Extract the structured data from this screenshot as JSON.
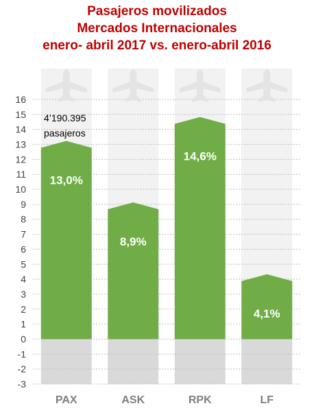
{
  "title_lines": [
    "Pasajeros movilizados",
    "Mercados Internacionales",
    "enero- abril 2017 vs. enero-abril 2016"
  ],
  "annotation": [
    "4’190.395",
    "pasajeros"
  ],
  "chart_data": {
    "type": "bar",
    "title": "Pasajeros movilizados Mercados Internacionales enero- abril 2017 vs. enero-abril 2016",
    "categories": [
      "PAX",
      "ASK",
      "RPK",
      "LF"
    ],
    "values": [
      13.0,
      8.9,
      14.6,
      4.1
    ],
    "data_labels": [
      "13,0%",
      "8,9%",
      "14,6%",
      "4,1%"
    ],
    "ylim": [
      -3,
      16
    ],
    "yticks": [
      -3,
      -2,
      -1,
      0,
      1,
      2,
      3,
      4,
      5,
      6,
      7,
      8,
      9,
      10,
      11,
      12,
      13,
      14,
      15,
      16
    ],
    "grid": true,
    "legend": "none",
    "icon": "airplane-icon",
    "colors": {
      "bar": "#70ad47",
      "negative_band": "#d9d9d9",
      "background_band": "#f2f2f2",
      "gridline": "#bfbfbf",
      "title": "#c00000"
    }
  }
}
